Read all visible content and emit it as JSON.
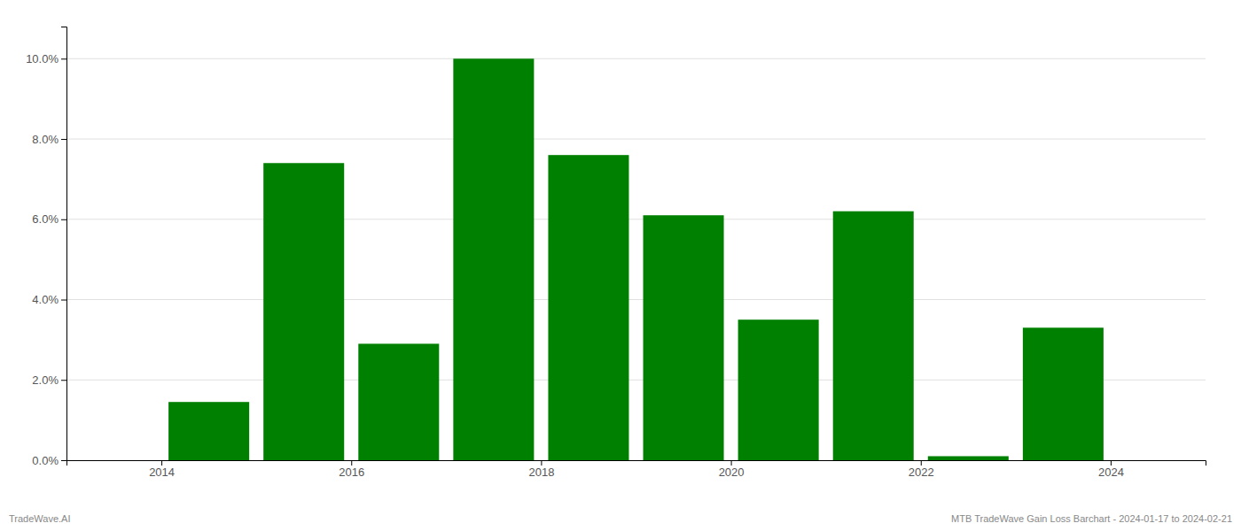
{
  "chart_data": {
    "type": "bar",
    "x": [
      2013.5,
      2014.5,
      2015.5,
      2016.5,
      2017.5,
      2018.5,
      2019.5,
      2020.5,
      2021.5,
      2022.5,
      2023.5
    ],
    "values": [
      0.0,
      0.0145,
      0.074,
      0.029,
      0.1,
      0.076,
      0.061,
      0.035,
      0.062,
      0.001,
      0.033
    ],
    "color": "#008000",
    "xlim": [
      2013.0,
      2025.0
    ],
    "xticks": [
      2014,
      2016,
      2018,
      2020,
      2022,
      2024
    ],
    "ylim": [
      0,
      0.108
    ],
    "yticks": [
      {
        "value": 0.0,
        "label": "0.0%"
      },
      {
        "value": 0.02,
        "label": "2.0%"
      },
      {
        "value": 0.04,
        "label": "4.0%"
      },
      {
        "value": 0.06,
        "label": "6.0%"
      },
      {
        "value": 0.08,
        "label": "8.0%"
      },
      {
        "value": 0.1,
        "label": "10.0%"
      }
    ],
    "grid": true,
    "annotations": [
      "TradeWave.AI",
      "MTB TradeWave Gain Loss Barchart - 2024-01-17 to 2024-02-21"
    ]
  }
}
